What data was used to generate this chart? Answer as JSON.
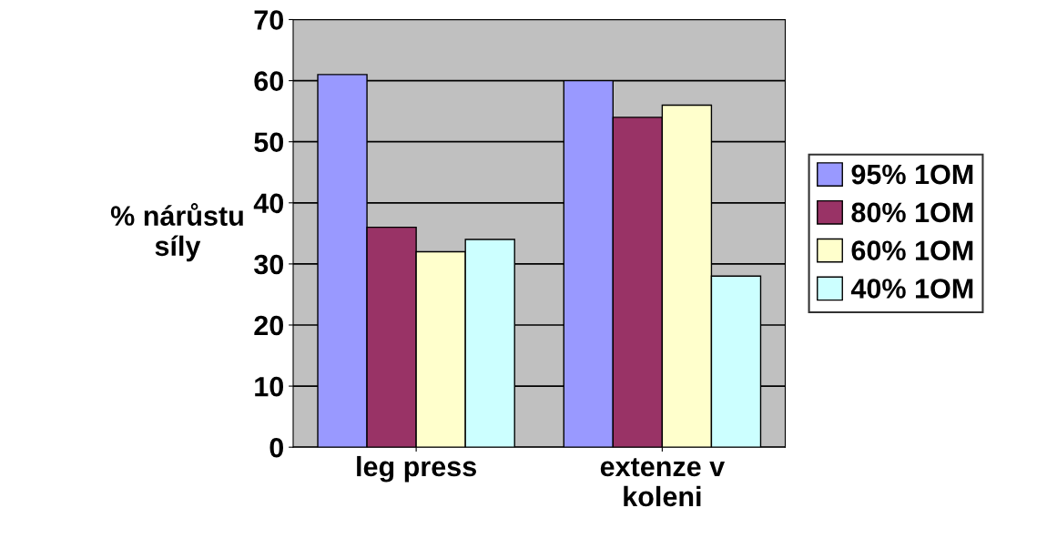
{
  "chart_data": {
    "type": "bar",
    "ylabel": "% nárůstu\nsíly",
    "categories": [
      "leg press",
      "extenze v\nkoleni"
    ],
    "series": [
      {
        "name": "95% 1OM",
        "color": "#9999ff",
        "values": [
          61,
          60
        ]
      },
      {
        "name": "80% 1OM",
        "color": "#993366",
        "values": [
          36,
          54
        ]
      },
      {
        "name": "60% 1OM",
        "color": "#ffffcc",
        "values": [
          32,
          56
        ]
      },
      {
        "name": "40% 1OM",
        "color": "#ccffff",
        "values": [
          34,
          28
        ]
      }
    ],
    "ylim": [
      0,
      70
    ],
    "yticks": [
      0,
      10,
      20,
      30,
      40,
      50,
      60,
      70
    ],
    "grid": "y",
    "legend": "right"
  }
}
